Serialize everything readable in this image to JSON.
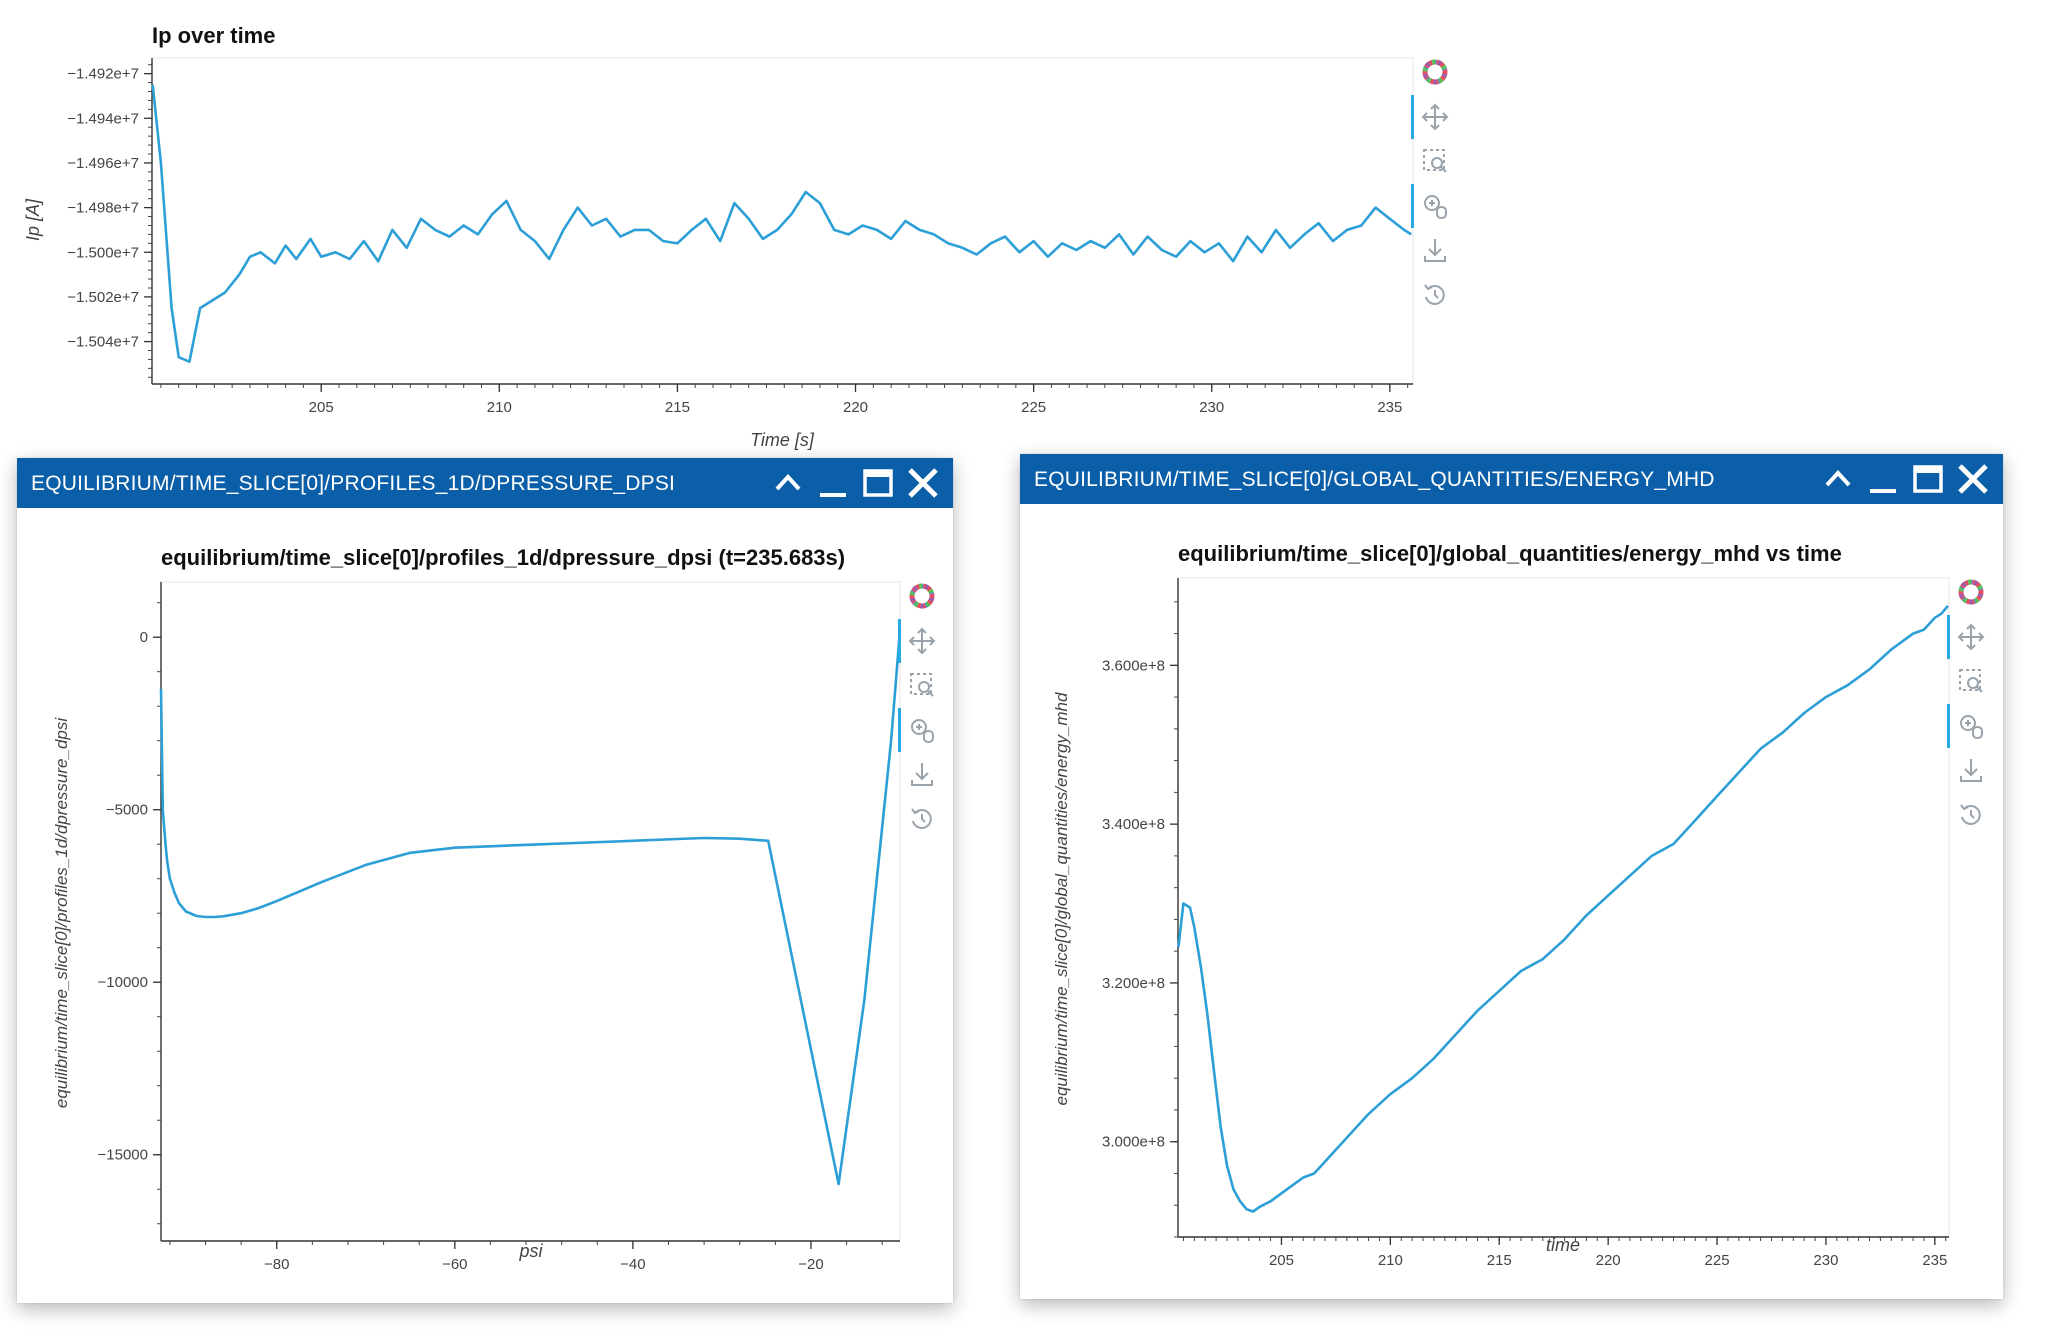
{
  "colors": {
    "line": "#2c9fd6",
    "header": "#0b5ea8",
    "accent": "#26aae1"
  },
  "toolbar_icons": [
    "bokeh-logo-icon",
    "pan-icon",
    "box-zoom-icon",
    "wheel-zoom-icon",
    "save-icon",
    "reset-icon"
  ],
  "panels": {
    "dpressure": {
      "header_title": "EQUILIBRIUM/TIME_SLICE[0]/PROFILES_1D/DPRESSURE_DPSI",
      "buttons": [
        "collapse-icon",
        "minimize-icon",
        "maximize-icon",
        "close-icon"
      ]
    },
    "energy": {
      "header_title": "EQUILIBRIUM/TIME_SLICE[0]/GLOBAL_QUANTITIES/ENERGY_MHD",
      "buttons": [
        "collapse-icon",
        "minimize-icon",
        "maximize-icon",
        "close-icon"
      ]
    }
  },
  "chart_data": [
    {
      "id": "ip",
      "type": "line",
      "title": "Ip over time",
      "xlabel": "Time [s]",
      "ylabel": "Ip [A]",
      "xlim": [
        200.25,
        235.65
      ],
      "ylim": [
        -15059000,
        -14913000
      ],
      "xticks": [
        205,
        210,
        215,
        220,
        225,
        230,
        235
      ],
      "xtick_labels": [
        "205",
        "210",
        "215",
        "220",
        "225",
        "230",
        "235"
      ],
      "yticks": [
        -14920000,
        -14940000,
        -14960000,
        -14980000,
        -15000000,
        -15020000,
        -15040000
      ],
      "ytick_labels": [
        "−1.492e+7",
        "−1.494e+7",
        "−1.496e+7",
        "−1.498e+7",
        "−1.500e+7",
        "−1.502e+7",
        "−1.504e+7"
      ],
      "x": [
        200.27,
        200.5,
        200.8,
        201.0,
        201.3,
        201.6,
        201.9,
        202.3,
        202.7,
        203.0,
        203.3,
        203.7,
        204.0,
        204.3,
        204.7,
        205.0,
        205.4,
        205.8,
        206.2,
        206.6,
        207.0,
        207.4,
        207.8,
        208.2,
        208.6,
        209.0,
        209.4,
        209.8,
        210.2,
        210.6,
        211.0,
        211.4,
        211.8,
        212.2,
        212.6,
        213.0,
        213.4,
        213.8,
        214.2,
        214.6,
        215.0,
        215.4,
        215.8,
        216.2,
        216.6,
        217.0,
        217.4,
        217.8,
        218.2,
        218.6,
        219.0,
        219.4,
        219.8,
        220.2,
        220.6,
        221.0,
        221.4,
        221.8,
        222.2,
        222.6,
        223.0,
        223.4,
        223.8,
        224.2,
        224.6,
        225.0,
        225.4,
        225.8,
        226.2,
        226.6,
        227.0,
        227.4,
        227.8,
        228.2,
        228.6,
        229.0,
        229.4,
        229.8,
        230.2,
        230.6,
        231.0,
        231.4,
        231.8,
        232.2,
        232.6,
        233.0,
        233.4,
        233.8,
        234.2,
        234.6,
        235.0,
        235.4,
        235.6
      ],
      "y": [
        -14925000,
        -14960000,
        -15025000,
        -15047000,
        -15049000,
        -15025000,
        -15022000,
        -15018000,
        -15010000,
        -15002000,
        -15000000,
        -15005000,
        -14997000,
        -15003000,
        -14994000,
        -15002000,
        -15000000,
        -15003000,
        -14995000,
        -15004000,
        -14990000,
        -14998000,
        -14985000,
        -14990000,
        -14993000,
        -14988000,
        -14992000,
        -14983000,
        -14977000,
        -14990000,
        -14995000,
        -15003000,
        -14990000,
        -14980000,
        -14988000,
        -14985000,
        -14993000,
        -14990000,
        -14990000,
        -14995000,
        -14996000,
        -14990000,
        -14985000,
        -14995000,
        -14978000,
        -14985000,
        -14994000,
        -14990000,
        -14983000,
        -14973000,
        -14978000,
        -14990000,
        -14992000,
        -14988000,
        -14990000,
        -14994000,
        -14986000,
        -14990000,
        -14992000,
        -14996000,
        -14998000,
        -15001000,
        -14996000,
        -14993000,
        -15000000,
        -14995000,
        -15002000,
        -14996000,
        -14999000,
        -14995000,
        -14998000,
        -14992000,
        -15001000,
        -14993000,
        -14999000,
        -15002000,
        -14995000,
        -15000000,
        -14996000,
        -15004000,
        -14993000,
        -15000000,
        -14990000,
        -14998000,
        -14992000,
        -14987000,
        -14995000,
        -14990000,
        -14988000,
        -14980000,
        -14985000,
        -14990000,
        -14992000
      ]
    },
    {
      "id": "dpressure",
      "type": "line",
      "title": "equilibrium/time_slice[0]/profiles_1d/dpressure_dpsi (t=235.683s)",
      "xlabel": "psi",
      "ylabel": "equilibrium/time_slice[0]/profiles_1d/dpressure_dpsi",
      "xlim": [
        -93,
        -10
      ],
      "ylim": [
        -17500,
        1600
      ],
      "xticks": [
        -80,
        -60,
        -40,
        -20
      ],
      "xtick_labels": [
        "−80",
        "−60",
        "−40",
        "−20"
      ],
      "yticks": [
        0,
        -5000,
        -10000,
        -15000
      ],
      "ytick_labels": [
        "0",
        "−5000",
        "−10000",
        "−15000"
      ],
      "x": [
        -93,
        -92.8,
        -92.5,
        -92.3,
        -92,
        -91.5,
        -91,
        -90.2,
        -89,
        -88,
        -87,
        -86,
        -84,
        -82,
        -80,
        -75,
        -70,
        -65,
        -60,
        -55,
        -50,
        -45,
        -40,
        -35,
        -32,
        -28,
        -24.8,
        -16.9,
        -14,
        -11,
        -10
      ],
      "y": [
        -1500,
        -5000,
        -6000,
        -6500,
        -7000,
        -7400,
        -7700,
        -7950,
        -8080,
        -8110,
        -8110,
        -8090,
        -8000,
        -7850,
        -7650,
        -7100,
        -6600,
        -6250,
        -6100,
        -6050,
        -6000,
        -5950,
        -5900,
        -5850,
        -5820,
        -5840,
        -5900,
        -15850,
        -10500,
        -3000,
        200
      ]
    },
    {
      "id": "energy",
      "type": "line",
      "title": "equilibrium/time_slice[0]/global_quantities/energy_mhd vs time",
      "xlabel": "time",
      "ylabel": "equilibrium/time_slice[0]/global_quantities/energy_mhd",
      "xlim": [
        200.25,
        235.65
      ],
      "ylim": [
        288000000,
        371000000
      ],
      "xticks": [
        205,
        210,
        215,
        220,
        225,
        230,
        235
      ],
      "xtick_labels": [
        "205",
        "210",
        "215",
        "220",
        "225",
        "230",
        "235"
      ],
      "yticks": [
        360000000,
        340000000,
        320000000,
        300000000
      ],
      "ytick_labels": [
        "3.600e+8",
        "3.400e+8",
        "3.200e+8",
        "3.000e+8"
      ],
      "x": [
        200.27,
        200.5,
        200.8,
        201.0,
        201.3,
        201.6,
        201.9,
        202.2,
        202.5,
        202.8,
        203.1,
        203.4,
        203.7,
        204.0,
        204.5,
        205.0,
        205.5,
        206.0,
        206.5,
        207.0,
        208.0,
        209.0,
        210.0,
        211.0,
        212.0,
        213.0,
        214.0,
        215.0,
        216.0,
        217.0,
        218.0,
        219.0,
        220.0,
        221.0,
        222.0,
        223.0,
        224.0,
        225.0,
        226.0,
        227.0,
        228.0,
        229.0,
        230.0,
        231.0,
        232.0,
        233.0,
        234.0,
        234.5,
        235.0,
        235.3,
        235.6
      ],
      "y": [
        324500000,
        330000000,
        329500000,
        327000000,
        322000000,
        316000000,
        309000000,
        302000000,
        297000000,
        294000000,
        292500000,
        291500000,
        291200000,
        291800000,
        292500000,
        293500000,
        294500000,
        295500000,
        296000000,
        297500000,
        300500000,
        303500000,
        306000000,
        308000000,
        310500000,
        313500000,
        316500000,
        319000000,
        321500000,
        323000000,
        325500000,
        328500000,
        331000000,
        333500000,
        336000000,
        337500000,
        340500000,
        343500000,
        346500000,
        349500000,
        351500000,
        354000000,
        356000000,
        357500000,
        359500000,
        362000000,
        364000000,
        364500000,
        366000000,
        366500000,
        367500000
      ]
    }
  ]
}
